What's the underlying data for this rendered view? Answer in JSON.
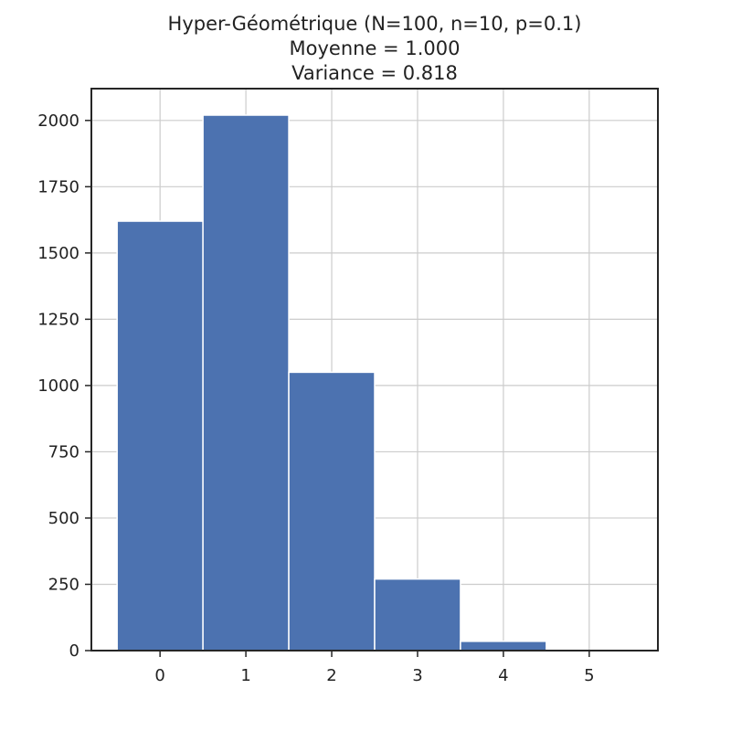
{
  "chart_data": {
    "type": "bar",
    "title_lines": [
      "Hyper-Géométrique (N=100, n=10, p=0.1)",
      "Moyenne =  1.000",
      "Variance =  0.818"
    ],
    "xlabel": "",
    "ylabel": "",
    "x": [
      0,
      1,
      2,
      3,
      4,
      5
    ],
    "values": [
      1620,
      2020,
      1050,
      270,
      35,
      0
    ],
    "bar_width": 1,
    "xlim": [
      -0.8,
      5.8
    ],
    "ylim": [
      0,
      2120
    ],
    "xticks": [
      0,
      1,
      2,
      3,
      4,
      5
    ],
    "yticks": [
      0,
      250,
      500,
      750,
      1000,
      1250,
      1500,
      1750,
      2000
    ],
    "grid": true,
    "legend": "none",
    "colors": {
      "bar": "#4c72b0",
      "grid": "#cccccc",
      "axis": "#262626"
    }
  }
}
